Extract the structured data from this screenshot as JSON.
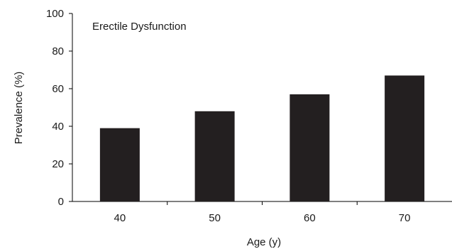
{
  "chart_data": {
    "type": "bar",
    "title": "Erectile Dysfunction",
    "xlabel": "Age (y)",
    "ylabel": "Prevalence (%)",
    "categories": [
      "40",
      "50",
      "60",
      "70"
    ],
    "values": [
      39,
      48,
      57,
      67
    ],
    "ylim": [
      0,
      100
    ],
    "yticks": [
      0,
      20,
      40,
      60,
      80,
      100
    ],
    "bar_color": "#231f20",
    "grid": false,
    "legend": "none"
  }
}
